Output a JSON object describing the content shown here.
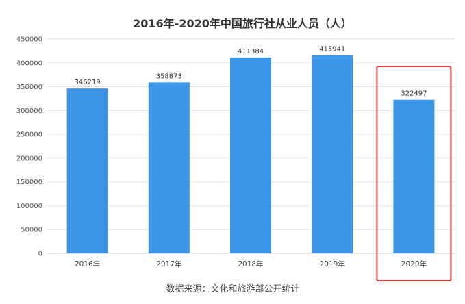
{
  "chart_data": {
    "type": "bar",
    "title": "2016年-2020年中国旅行社从业人员（人）",
    "categories": [
      "2016年",
      "2017年",
      "2018年",
      "2019年",
      "2020年"
    ],
    "values": [
      346219,
      358873,
      411384,
      415941,
      322497
    ],
    "data_labels": [
      "346219",
      "358873",
      "411384",
      "415941",
      "322497"
    ],
    "ylim": [
      0,
      450000
    ],
    "y_ticks": [
      0,
      50000,
      100000,
      150000,
      200000,
      250000,
      300000,
      350000,
      400000,
      450000
    ],
    "grid": true,
    "legend": "none",
    "bar_color": "#3d95e8",
    "highlight": {
      "category": "2020年",
      "color": "#e53935"
    }
  },
  "source": "数据来源：文化和旅游部公开统计"
}
